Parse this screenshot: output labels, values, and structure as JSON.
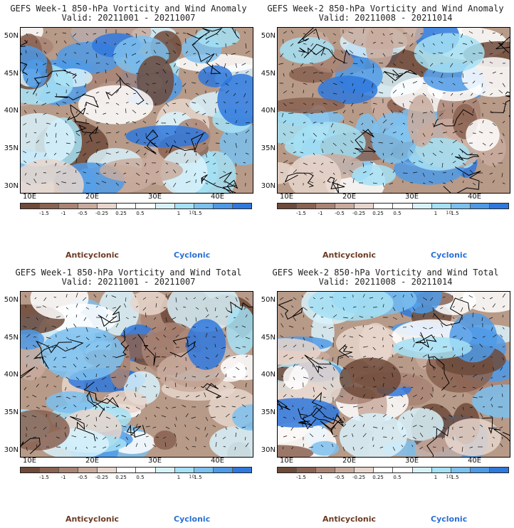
{
  "panels": [
    {
      "title": "GEFS Week-1 850-hPa Vorticity and Wind Anomaly",
      "valid": "Valid: 20211001 - 20211007"
    },
    {
      "title": "GEFS Week-2 850-hPa Vorticity and Wind Anomaly",
      "valid": "Valid: 20211008 - 20211014"
    },
    {
      "title": "GEFS Week-1 850-hPa Vorticity and Wind Total",
      "valid": "Valid: 20211001 - 20211007"
    },
    {
      "title": "GEFS Week-2 850-hPa Vorticity and Wind Total",
      "valid": "Valid: 20211008 - 20211014"
    }
  ],
  "lat_labels": [
    "50N",
    "45N",
    "40N",
    "35N",
    "30N"
  ],
  "lon_labels": [
    "10E",
    "20E",
    "30E",
    "40E"
  ],
  "colorbar": {
    "labels": [
      "-1.5",
      "-1",
      "-0.5",
      "-0.25",
      "0.25",
      "0.5",
      "1",
      "1.5"
    ],
    "unit": "10",
    "colors": [
      "#6e4a3a",
      "#8a6251",
      "#a98474",
      "#c9ab9d",
      "#e8d6cc",
      "#ffffff",
      "#ffffff",
      "#d8f2fb",
      "#a5e0f5",
      "#7cc0ee",
      "#4f9ae6",
      "#2f78dd"
    ]
  },
  "legend": {
    "anticyclonic": "Anticyclonic",
    "cyclonic": "Cyclonic"
  }
}
